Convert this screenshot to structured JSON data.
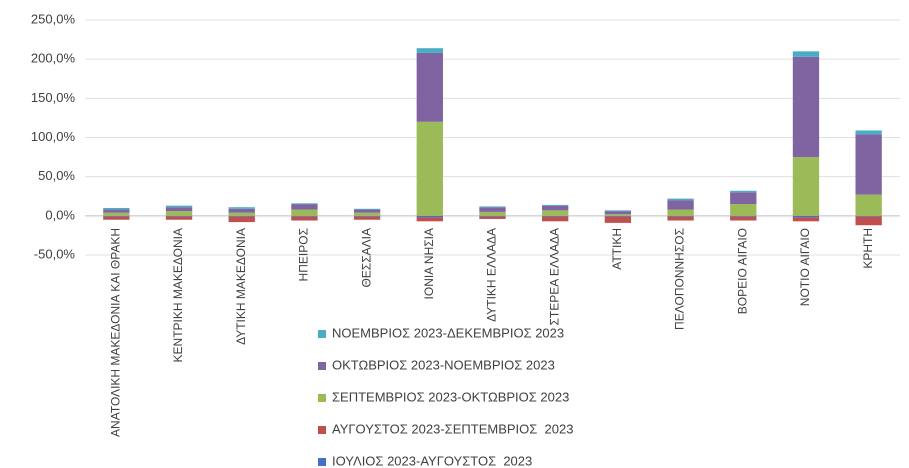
{
  "chart_data": {
    "type": "stacked_bar",
    "categories": [
      "ΑΝΑΤΟΛΙΚΗ ΜΑΚΕΔΟΝΙΑ ΚΑΙ ΘΡΑΚΗ",
      "ΚΕΝΤΡΙΚΗ ΜΑΚΕΔΟΝΙΑ",
      "ΔΥΤΙΚΗ ΜΑΚΕΔΟΝΙΑ",
      "ΗΠΕΙΡΟΣ",
      "ΘΕΣΣΑΛΙΑ",
      "ΙΟΝΙΑ ΝΗΣΙΑ",
      "ΔΥΤΙΚΗ ΕΛΛΑΔΑ",
      "ΣΤΕΡΕΑ ΕΛΛΑΔΑ",
      "ΑΤΤΙΚΗ",
      "ΠΕΛΟΠΟΝΝΗΣΟΣ",
      "ΒΟΡΕΙΟ ΑΙΓΑΙΟ",
      "ΝΟΤΙΟ ΑΙΓΑΙΟ",
      "ΚΡΗΤΗ"
    ],
    "series": [
      {
        "name": "ΙΟΥΛΙΟΣ 2023-ΑΥΓΟΥΣΤΟΣ  2023",
        "color": "#4472c4",
        "values": [
          -1,
          -1,
          -1,
          -1,
          -1,
          -2,
          -1,
          -1,
          -1,
          -1,
          -1,
          -2,
          -1
        ]
      },
      {
        "name": "ΑΥΓΟΥΣΤΟΣ 2023-ΣΕΠΤΕΜΒΡΙΟΣ  2023",
        "color": "#c0504d",
        "values": [
          -4,
          -4,
          -7,
          -5,
          -4,
          -5,
          -3,
          -6,
          -8,
          -5,
          -5,
          -5,
          -11
        ]
      },
      {
        "name": "ΣΕΠΤΕΜΒΡΙΟΣ 2023-ΟΚΤΩΒΡΙΟΣ 2023",
        "color": "#9bbb59",
        "values": [
          4,
          6,
          4,
          8,
          4,
          120,
          5,
          7,
          2,
          8,
          15,
          75,
          27
        ]
      },
      {
        "name": "ΟΚΤΩΒΡΙΟΣ 2023-ΝΟΕΜΒΡΙΟΣ 2023",
        "color": "#8064a2",
        "values": [
          4,
          5,
          5,
          7,
          4,
          88,
          6,
          6,
          4,
          12,
          15,
          128,
          77
        ]
      },
      {
        "name": "ΝΟΕΜΒΡΙΟΣ 2023-ΔΕΚΕΜΒΡΙΟΣ 2023",
        "color": "#4bacc6",
        "values": [
          2,
          2,
          2,
          1,
          1,
          6,
          1,
          1,
          1,
          2,
          2,
          7,
          5
        ]
      }
    ],
    "ylim": [
      -50,
      250
    ],
    "yticks": [
      {
        "value": -50,
        "label": "-50,0%"
      },
      {
        "value": 0,
        "label": "0,0%"
      },
      {
        "value": 50,
        "label": "50,0%"
      },
      {
        "value": 100,
        "label": "100,0%"
      },
      {
        "value": 150,
        "label": "150,0%"
      },
      {
        "value": 200,
        "label": "200,0%"
      },
      {
        "value": 250,
        "label": "250,0%"
      }
    ],
    "grid": true,
    "legend": "bottom"
  }
}
